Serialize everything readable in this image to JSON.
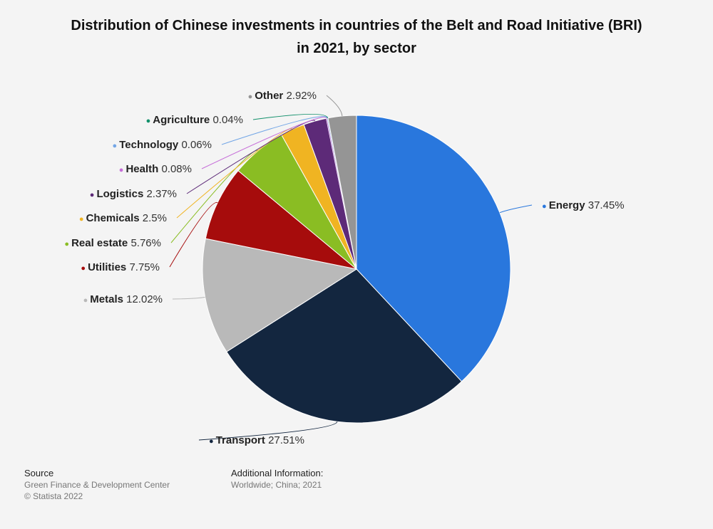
{
  "chart_data": {
    "type": "pie",
    "title": "Distribution of Chinese investments in countries of the Belt and Road Initiative (BRI)",
    "title_line2": "in 2021, by sector",
    "slices": [
      {
        "label": "Energy",
        "value": 37.45,
        "value_label": "37.45%",
        "color": "#2977dd"
      },
      {
        "label": "Transport",
        "value": 27.51,
        "value_label": "27.51%",
        "color": "#13263f"
      },
      {
        "label": "Metals",
        "value": 12.02,
        "value_label": "12.02%",
        "color": "#b9b9b9"
      },
      {
        "label": "Utilities",
        "value": 7.75,
        "value_label": "7.75%",
        "color": "#a60c0c"
      },
      {
        "label": "Real estate",
        "value": 5.76,
        "value_label": "5.76%",
        "color": "#8abd23"
      },
      {
        "label": "Chemicals",
        "value": 2.5,
        "value_label": "2.5%",
        "color": "#f0b422"
      },
      {
        "label": "Logistics",
        "value": 2.37,
        "value_label": "2.37%",
        "color": "#5d2a78"
      },
      {
        "label": "Health",
        "value": 0.08,
        "value_label": "0.08%",
        "color": "#c66ed8"
      },
      {
        "label": "Technology",
        "value": 0.06,
        "value_label": "0.06%",
        "color": "#73a6e6"
      },
      {
        "label": "Agriculture",
        "value": 0.04,
        "value_label": "0.04%",
        "color": "#12906b"
      },
      {
        "label": "Other",
        "value": 2.92,
        "value_label": "2.92%",
        "color": "#959595"
      }
    ]
  },
  "footer": {
    "source_heading": "Source",
    "source_lines": [
      "Green Finance & Development Center",
      "© Statista 2022"
    ],
    "info_heading": "Additional Information:",
    "info_text": "Worldwide; China; 2021"
  }
}
